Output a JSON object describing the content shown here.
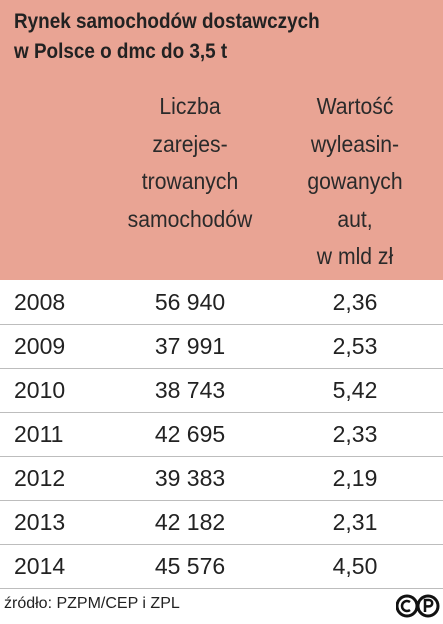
{
  "header": {
    "title": [
      "Rynek samochodów dostawczych",
      "w Polsce o dmc do 3,5 t"
    ],
    "columns": [
      {
        "lines": [
          "Liczba",
          "zarejes-",
          "trowanych",
          "samochodów"
        ]
      },
      {
        "lines": [
          "Wartość",
          "wyleasin-",
          "gowanych",
          "aut,",
          "w mld zł"
        ]
      }
    ]
  },
  "table": {
    "rows": [
      [
        "2008",
        "56 940",
        "2,36"
      ],
      [
        "2009",
        "37 991",
        "2,53"
      ],
      [
        "2010",
        "38 743",
        "5,42"
      ],
      [
        "2011",
        "42 695",
        "2,33"
      ],
      [
        "2012",
        "39 383",
        "2,19"
      ],
      [
        "2013",
        "42 182",
        "2,31"
      ],
      [
        "2014",
        "45 576",
        "4,50"
      ]
    ]
  },
  "footer": {
    "source": "źródło: PZPM/CEP i ZPL"
  }
}
